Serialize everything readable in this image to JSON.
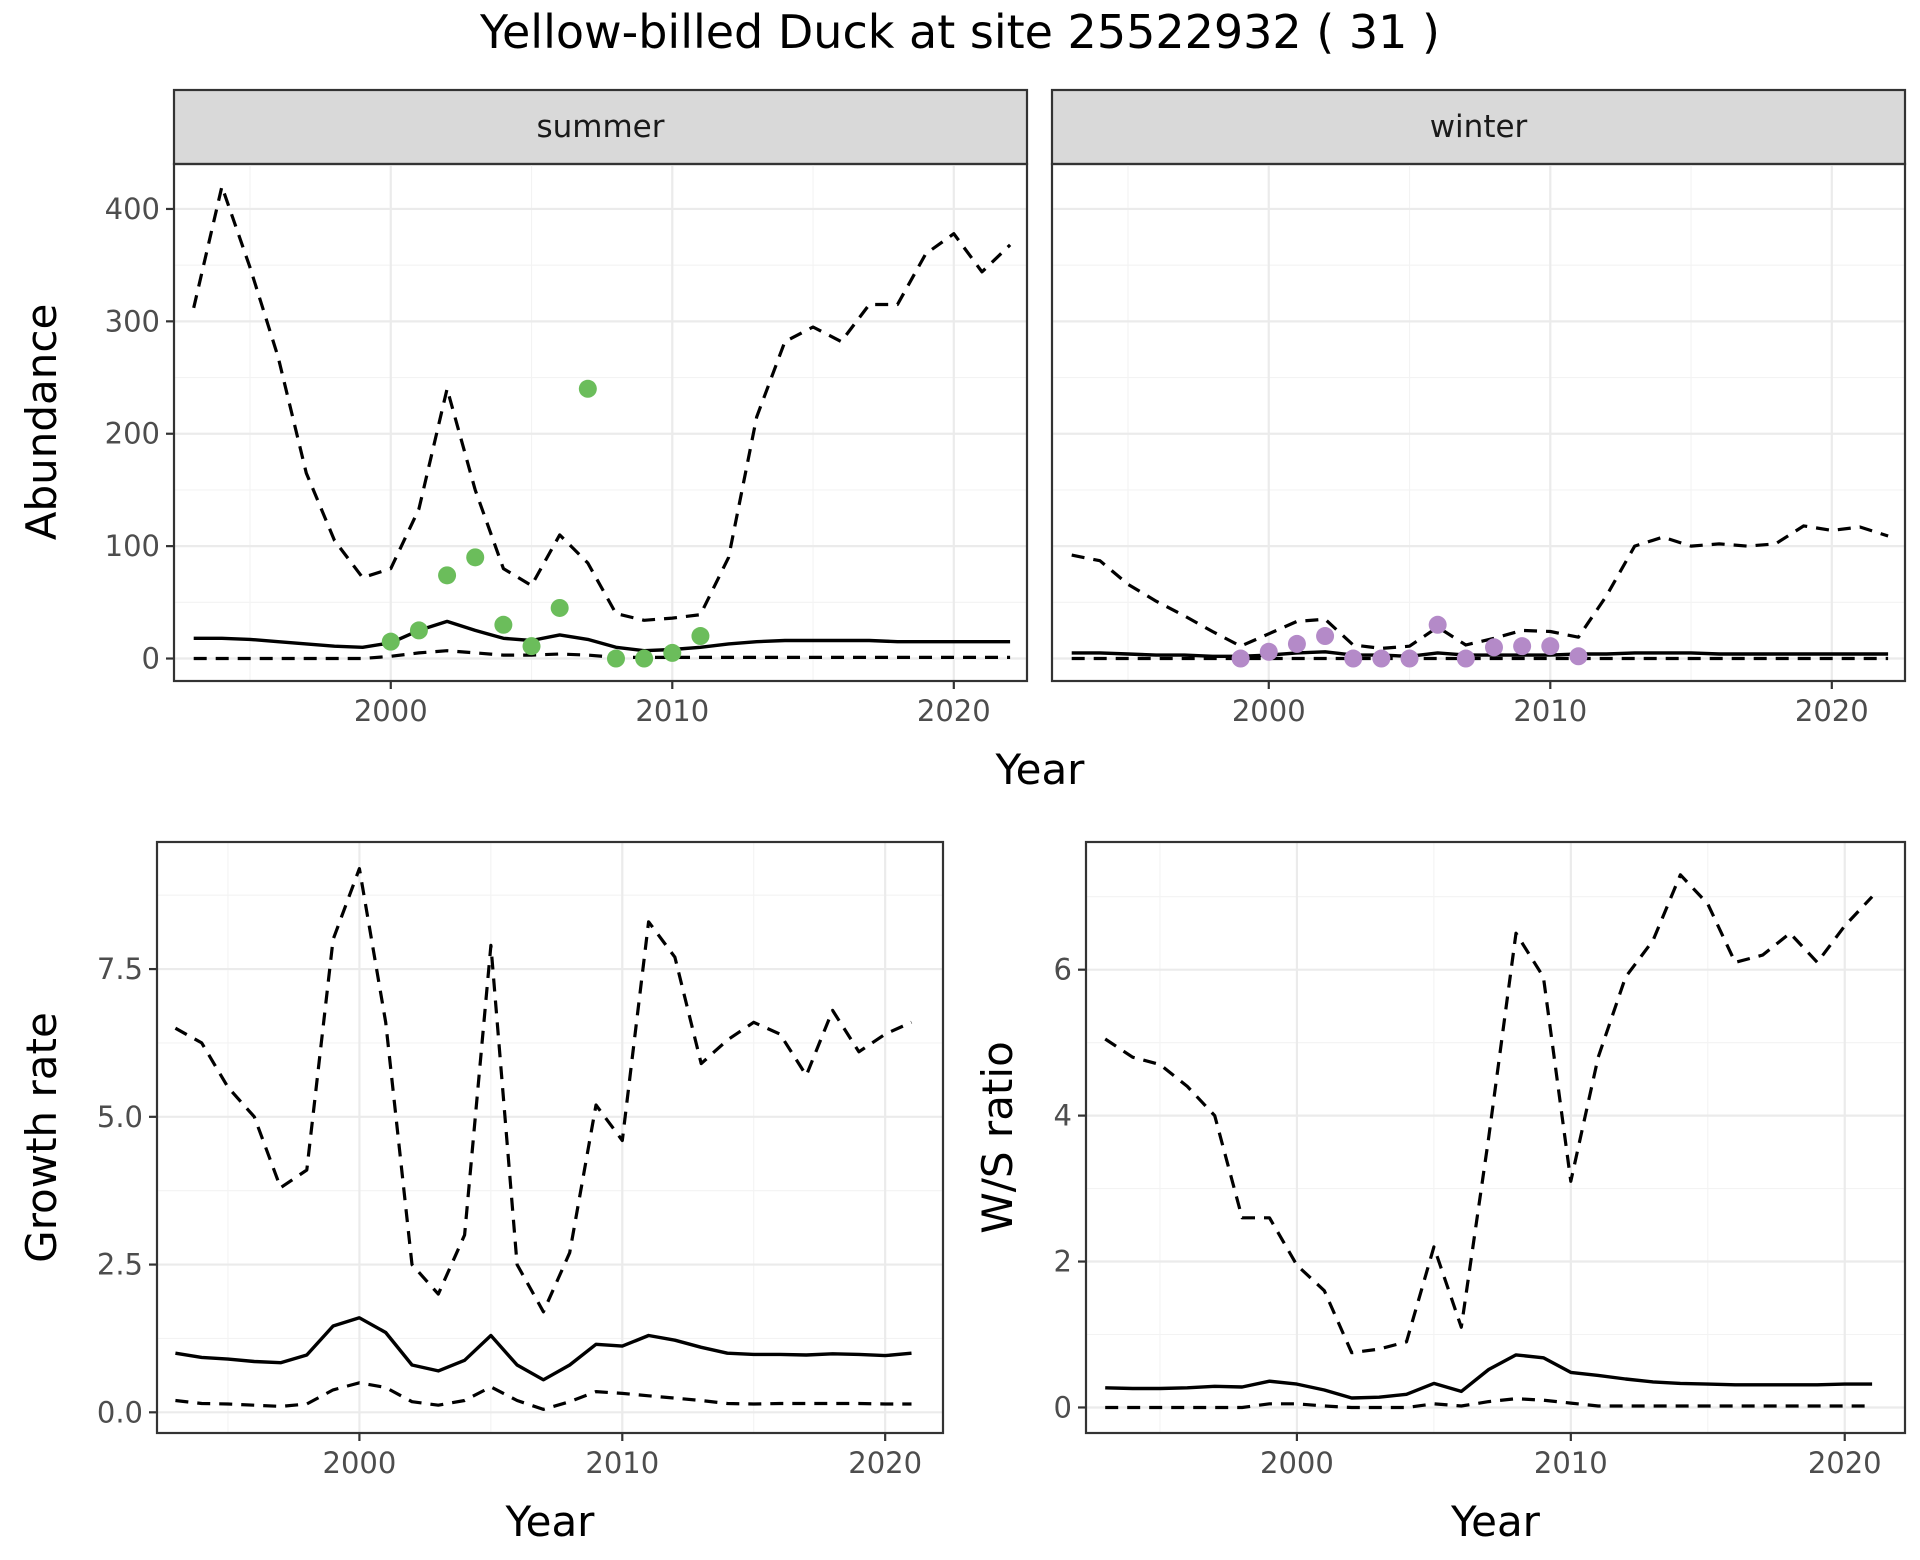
{
  "title": "Yellow-billed Duck at site 25522932 ( 31 )",
  "colors": {
    "summer_points": "#6bbd5b",
    "winter_points": "#b48ac8",
    "strip_fill": "#d9d9d9"
  },
  "chart_data": [
    {
      "id": "abundance",
      "type": "line",
      "facet_labels": [
        "summer",
        "winter"
      ],
      "xlabel": "Year",
      "ylabel": "Abundance",
      "xlim": [
        1992.3,
        2022.6
      ],
      "ylim": [
        -20,
        440
      ],
      "x_ticks": [
        "2000",
        "2010",
        "2020"
      ],
      "y_ticks": [
        "0",
        "100",
        "200",
        "300",
        "400"
      ],
      "panels": [
        {
          "facet": "summer",
          "x": [
            1993,
            1994,
            1995,
            1996,
            1997,
            1998,
            1999,
            2000,
            2001,
            2002,
            2003,
            2004,
            2005,
            2006,
            2007,
            2008,
            2009,
            2010,
            2011,
            2012,
            2013,
            2014,
            2015,
            2016,
            2017,
            2018,
            2019,
            2020,
            2021,
            2022
          ],
          "estimate": [
            18,
            18,
            17,
            15,
            13,
            11,
            10,
            14,
            25,
            33,
            25,
            18,
            16,
            21,
            17,
            10,
            7,
            8,
            10,
            13,
            15,
            16,
            16,
            16,
            16,
            15,
            15,
            15,
            15,
            15
          ],
          "lower": [
            0,
            0,
            0,
            0,
            0,
            0,
            0,
            2,
            5,
            7,
            5,
            3,
            3,
            4,
            3,
            1,
            1,
            1,
            1,
            1,
            1,
            1,
            1,
            1,
            1,
            1,
            1,
            1,
            1,
            1
          ],
          "upper": [
            312,
            420,
            348,
            268,
            165,
            105,
            72,
            80,
            133,
            240,
            150,
            80,
            65,
            110,
            85,
            40,
            34,
            36,
            39,
            90,
            215,
            282,
            295,
            282,
            315,
            315,
            360,
            378,
            344,
            368
          ],
          "observed": {
            "x": [
              2000,
              2001,
              2002,
              2003,
              2004,
              2005,
              2006,
              2007,
              2008,
              2009,
              2010,
              2011
            ],
            "y": [
              15,
              25,
              74,
              90,
              30,
              11,
              45,
              240,
              0,
              0,
              5,
              20
            ]
          }
        },
        {
          "facet": "winter",
          "x": [
            1993,
            1994,
            1995,
            1996,
            1997,
            1998,
            1999,
            2000,
            2001,
            2002,
            2003,
            2004,
            2005,
            2006,
            2007,
            2008,
            2009,
            2010,
            2011,
            2012,
            2013,
            2014,
            2015,
            2016,
            2017,
            2018,
            2019,
            2020,
            2021,
            2022
          ],
          "estimate": [
            5,
            5,
            4,
            3,
            3,
            2,
            2,
            3,
            5,
            6,
            3,
            3,
            2,
            5,
            3,
            3,
            3,
            3,
            4,
            4,
            5,
            5,
            5,
            4,
            4,
            4,
            4,
            4,
            4,
            4
          ],
          "lower": [
            0,
            0,
            0,
            0,
            0,
            0,
            0,
            0,
            0,
            0,
            0,
            0,
            0,
            0,
            0,
            0,
            0,
            0,
            0,
            0,
            0,
            0,
            0,
            0,
            0,
            0,
            0,
            0,
            0,
            0
          ],
          "upper": [
            92,
            87,
            66,
            51,
            38,
            24,
            11,
            22,
            33,
            35,
            12,
            9,
            11,
            28,
            12,
            18,
            25,
            24,
            19,
            56,
            100,
            108,
            100,
            102,
            100,
            102,
            118,
            114,
            117,
            109
          ],
          "observed": {
            "x": [
              1999,
              2000,
              2001,
              2002,
              2003,
              2004,
              2005,
              2006,
              2007,
              2008,
              2009,
              2010,
              2011
            ],
            "y": [
              0,
              6,
              13,
              20,
              0,
              0,
              0,
              30,
              0,
              10,
              11,
              11,
              2
            ]
          }
        }
      ]
    },
    {
      "id": "growth",
      "type": "line",
      "xlabel": "Year",
      "ylabel": "Growth rate",
      "xlim": [
        1992.3,
        2022.2
      ],
      "ylim": [
        -0.35,
        9.65
      ],
      "x_ticks": [
        "2000",
        "2010",
        "2020"
      ],
      "y_ticks": [
        "0.0",
        "2.5",
        "5.0",
        "7.5"
      ],
      "x": [
        1993,
        1994,
        1995,
        1996,
        1997,
        1998,
        1999,
        2000,
        2001,
        2002,
        2003,
        2004,
        2005,
        2006,
        2007,
        2008,
        2009,
        2010,
        2011,
        2012,
        2013,
        2014,
        2015,
        2016,
        2017,
        2018,
        2019,
        2020,
        2021
      ],
      "estimate": [
        1.0,
        0.93,
        0.9,
        0.86,
        0.84,
        0.97,
        1.46,
        1.6,
        1.35,
        0.8,
        0.7,
        0.88,
        1.3,
        0.8,
        0.55,
        0.8,
        1.15,
        1.12,
        1.3,
        1.22,
        1.1,
        1.0,
        0.98,
        0.98,
        0.97,
        0.99,
        0.98,
        0.96,
        1.0
      ],
      "lower": [
        0.2,
        0.15,
        0.14,
        0.12,
        0.1,
        0.14,
        0.38,
        0.5,
        0.42,
        0.18,
        0.12,
        0.2,
        0.43,
        0.2,
        0.05,
        0.18,
        0.35,
        0.32,
        0.28,
        0.24,
        0.2,
        0.15,
        0.14,
        0.15,
        0.15,
        0.15,
        0.15,
        0.14,
        0.14
      ],
      "upper": [
        6.5,
        6.25,
        5.5,
        5.0,
        3.8,
        4.1,
        8.0,
        9.2,
        6.6,
        2.5,
        2.0,
        3.0,
        7.9,
        2.5,
        1.7,
        2.7,
        5.2,
        4.6,
        8.3,
        7.7,
        5.9,
        6.3,
        6.6,
        6.4,
        5.7,
        6.8,
        6.1,
        6.4,
        6.6
      ]
    },
    {
      "id": "ws_ratio",
      "type": "line",
      "xlabel": "Year",
      "ylabel": "W/S ratio",
      "xlim": [
        1992.3,
        2022.2
      ],
      "ylim": [
        -0.35,
        7.75
      ],
      "x_ticks": [
        "2000",
        "2010",
        "2020"
      ],
      "y_ticks": [
        "0",
        "2",
        "4",
        "6"
      ],
      "x": [
        1993,
        1994,
        1995,
        1996,
        1997,
        1998,
        1999,
        2000,
        2001,
        2002,
        2003,
        2004,
        2005,
        2006,
        2007,
        2008,
        2009,
        2010,
        2011,
        2012,
        2013,
        2014,
        2015,
        2016,
        2017,
        2018,
        2019,
        2020,
        2021
      ],
      "estimate": [
        0.27,
        0.26,
        0.26,
        0.27,
        0.29,
        0.28,
        0.36,
        0.32,
        0.24,
        0.13,
        0.14,
        0.18,
        0.33,
        0.22,
        0.52,
        0.72,
        0.68,
        0.48,
        0.44,
        0.39,
        0.35,
        0.33,
        0.32,
        0.31,
        0.31,
        0.31,
        0.31,
        0.32,
        0.32
      ],
      "lower": [
        0,
        0,
        0,
        0,
        0,
        0,
        0.05,
        0.05,
        0.02,
        0,
        0,
        0,
        0.05,
        0.02,
        0.08,
        0.12,
        0.1,
        0.06,
        0.02,
        0.02,
        0.02,
        0.02,
        0.02,
        0.02,
        0.02,
        0.02,
        0.02,
        0.02,
        0.02
      ],
      "upper": [
        5.05,
        4.8,
        4.7,
        4.4,
        4.0,
        2.6,
        2.6,
        1.95,
        1.6,
        0.75,
        0.8,
        0.9,
        2.2,
        1.1,
        3.7,
        6.5,
        5.9,
        3.1,
        4.8,
        5.9,
        6.4,
        7.3,
        6.9,
        6.1,
        6.2,
        6.5,
        6.1,
        6.6,
        7.0
      ]
    }
  ]
}
